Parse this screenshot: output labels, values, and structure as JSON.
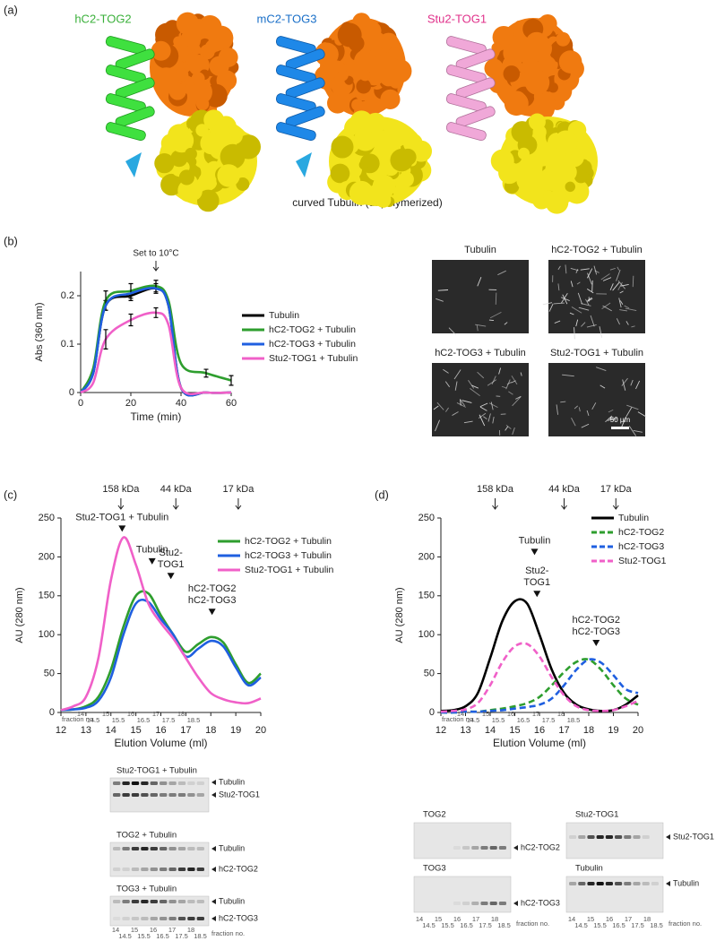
{
  "panel_a": {
    "label": "(a)",
    "structures": [
      "hC2-TOG2",
      "mC2-TOG3",
      "Stu2-TOG1"
    ],
    "caption": "curved Tubulin (unpolymerized)"
  },
  "panel_b_images": {
    "tiles": [
      "Tubulin",
      "hC2-TOG2 + Tubulin",
      "hC2-TOG3 + Tubulin",
      "Stu2-TOG1 + Tubulin"
    ],
    "scale_bar": "50 µm"
  },
  "chart_data": [
    {
      "panel": "(b)",
      "type": "line",
      "xlabel": "Time (min)",
      "ylabel": "Abs (360 nm)",
      "annotation": {
        "text": "Set to 10°C",
        "x": 30
      },
      "x": [
        0,
        5,
        10,
        20,
        30,
        35,
        40,
        50,
        60
      ],
      "xlim": [
        0,
        60
      ],
      "xticks": [
        0,
        20,
        40,
        60
      ],
      "ylim": [
        0,
        0.25
      ],
      "yticks": [
        0,
        0.1,
        0.2
      ],
      "legend": "right",
      "series": [
        {
          "name": "Tubulin",
          "color": "#000000",
          "dash": false,
          "values": [
            0,
            0.04,
            0.18,
            0.2,
            0.215,
            0.18,
            0.01,
            0,
            0
          ],
          "errors": [
            null,
            null,
            0.01,
            0.01,
            0.01,
            null,
            null,
            null,
            null
          ]
        },
        {
          "name": "hC2-TOG2 + Tubulin",
          "color": "#2e9e2e",
          "dash": false,
          "values": [
            0,
            0.05,
            0.19,
            0.21,
            0.22,
            0.19,
            0.06,
            0.04,
            0.025
          ],
          "errors": [
            null,
            null,
            0.02,
            0.015,
            0.012,
            null,
            null,
            0.008,
            0.01
          ]
        },
        {
          "name": "hC2-TOG3 + Tubulin",
          "color": "#1f5fe0",
          "dash": false,
          "values": [
            0,
            0.04,
            0.18,
            0.205,
            0.215,
            0.18,
            0.01,
            0,
            0
          ],
          "errors": [
            null,
            null,
            null,
            null,
            null,
            null,
            null,
            null,
            null
          ]
        },
        {
          "name": "Stu2-TOG1 + Tubulin",
          "color": "#f060c8",
          "dash": false,
          "values": [
            0,
            0.02,
            0.11,
            0.15,
            0.165,
            0.14,
            0.01,
            0,
            0
          ],
          "errors": [
            null,
            null,
            0.02,
            0.012,
            0.01,
            null,
            null,
            null,
            null
          ]
        }
      ]
    },
    {
      "panel": "(c)",
      "type": "line",
      "xlabel": "Elution Volume (ml)",
      "ylabel": "AU (280 nm)",
      "markers": [
        {
          "label": "158 kDa",
          "x": 14.4
        },
        {
          "label": "44 kDa",
          "x": 16.6
        },
        {
          "label": "17 kDa",
          "x": 19.1
        }
      ],
      "annotations": [
        {
          "lines": [
            "Stu2-TOG1 + Tubulin"
          ],
          "x": 14.45,
          "y": 230
        },
        {
          "lines": [
            "Tubulin"
          ],
          "x": 15.65,
          "y": 188
        },
        {
          "lines": [
            "Stu2-",
            "TOG1"
          ],
          "x": 16.4,
          "y": 169
        },
        {
          "lines": [
            "hC2-TOG2",
            "hC2-TOG3"
          ],
          "x": 18.05,
          "y": 123
        }
      ],
      "fraction_label": "fraction no.",
      "fractions": [
        14,
        14.5,
        15,
        15.5,
        16,
        16.5,
        17,
        17.5,
        18,
        18.5
      ],
      "x": [
        12,
        12.5,
        13,
        13.5,
        14,
        14.5,
        15,
        15.5,
        16,
        16.5,
        17,
        17.5,
        18,
        18.5,
        19,
        19.5,
        20
      ],
      "xlim": [
        12,
        20
      ],
      "xticks": [
        12,
        13,
        14,
        15,
        16,
        17,
        18,
        19,
        20
      ],
      "ylim": [
        0,
        250
      ],
      "yticks": [
        0,
        50,
        100,
        150,
        200,
        250
      ],
      "legend": "upper right",
      "series": [
        {
          "name": "hC2-TOG2 + Tubulin",
          "color": "#2e9e2e",
          "dash": false,
          "values": [
            3,
            4,
            8,
            20,
            55,
            110,
            150,
            153,
            125,
            100,
            78,
            88,
            97,
            90,
            62,
            38,
            50
          ]
        },
        {
          "name": "hC2-TOG3 + Tubulin",
          "color": "#1f5fe0",
          "dash": false,
          "values": [
            3,
            4,
            6,
            15,
            45,
            100,
            140,
            142,
            120,
            100,
            72,
            82,
            92,
            85,
            58,
            35,
            45
          ]
        },
        {
          "name": "Stu2-TOG1 + Tubulin",
          "color": "#f060c8",
          "dash": false,
          "values": [
            3,
            8,
            20,
            70,
            170,
            225,
            190,
            140,
            115,
            95,
            70,
            45,
            25,
            17,
            13,
            12,
            18
          ]
        }
      ]
    },
    {
      "panel": "(d)",
      "type": "line",
      "xlabel": "Elution Volume (ml)",
      "ylabel": "AU (280 nm)",
      "markers": [
        {
          "label": "158 kDa",
          "x": 14.2
        },
        {
          "label": "44 kDa",
          "x": 17.0
        },
        {
          "label": "17 kDa",
          "x": 19.1
        }
      ],
      "annotations": [
        {
          "lines": [
            "Tubulin"
          ],
          "x": 15.8,
          "y": 200
        },
        {
          "lines": [
            "Stu2-",
            "TOG1"
          ],
          "x": 15.9,
          "y": 146
        },
        {
          "lines": [
            "hC2-TOG2",
            "hC2-TOG3"
          ],
          "x": 18.3,
          "y": 83
        }
      ],
      "fraction_label": "fraction no.",
      "fractions": [
        14,
        14.5,
        15,
        15.5,
        16,
        16.5,
        17,
        17.5,
        18,
        18.5
      ],
      "x": [
        12,
        12.5,
        13,
        13.5,
        14,
        14.5,
        15,
        15.5,
        16,
        16.5,
        17,
        17.5,
        18,
        18.5,
        19,
        19.5,
        20
      ],
      "xlim": [
        12,
        20
      ],
      "xticks": [
        12,
        13,
        14,
        15,
        16,
        17,
        18,
        19,
        20
      ],
      "ylim": [
        0,
        250
      ],
      "yticks": [
        0,
        50,
        100,
        150,
        200,
        250
      ],
      "legend": "upper right",
      "series": [
        {
          "name": "Tubulin",
          "color": "#000000",
          "dash": false,
          "values": [
            2,
            3,
            8,
            25,
            70,
            118,
            143,
            140,
            100,
            55,
            25,
            10,
            4,
            2,
            3,
            10,
            22
          ]
        },
        {
          "name": "hC2-TOG2",
          "color": "#2e9e2e",
          "dash": true,
          "values": [
            0,
            0,
            1,
            1,
            3,
            5,
            8,
            12,
            20,
            35,
            52,
            65,
            68,
            55,
            35,
            18,
            10
          ]
        },
        {
          "name": "hC2-TOG3",
          "color": "#1f5fe0",
          "dash": true,
          "values": [
            0,
            0,
            1,
            1,
            2,
            3,
            5,
            7,
            10,
            18,
            35,
            55,
            68,
            64,
            48,
            30,
            25
          ]
        },
        {
          "name": "Stu2-TOG1",
          "color": "#f060c8",
          "dash": true,
          "values": [
            1,
            2,
            4,
            12,
            35,
            65,
            85,
            88,
            72,
            45,
            22,
            8,
            3,
            2,
            3,
            8,
            15
          ]
        }
      ]
    }
  ],
  "gels_c": {
    "fraction_label": "fraction no.",
    "fractions": [
      14,
      14.5,
      15,
      15.5,
      16,
      16.5,
      17,
      17.5,
      18,
      18.5
    ],
    "gels": [
      {
        "title": "Stu2-TOG1 + Tubulin",
        "bands": [
          "Tubulin",
          "Stu2-TOG1"
        ]
      },
      {
        "title": "TOG2 + Tubulin",
        "bands": [
          "Tubulin",
          "hC2-TOG2"
        ]
      },
      {
        "title": "TOG3 + Tubulin",
        "bands": [
          "Tubulin",
          "hC2-TOG3"
        ]
      }
    ]
  },
  "gels_d": {
    "fraction_label": "fraction no.",
    "fractions": [
      14,
      14.5,
      15,
      15.5,
      16,
      16.5,
      17,
      17.5,
      18,
      18.5
    ],
    "gels": [
      {
        "title": "TOG2",
        "bands": [
          "hC2-TOG2"
        ]
      },
      {
        "title": "TOG3",
        "bands": [
          "hC2-TOG3"
        ]
      },
      {
        "title": "Stu2-TOG1",
        "bands": [
          "Stu2-TOG1"
        ]
      },
      {
        "title": "Tubulin",
        "bands": [
          "Tubulin"
        ]
      }
    ]
  }
}
